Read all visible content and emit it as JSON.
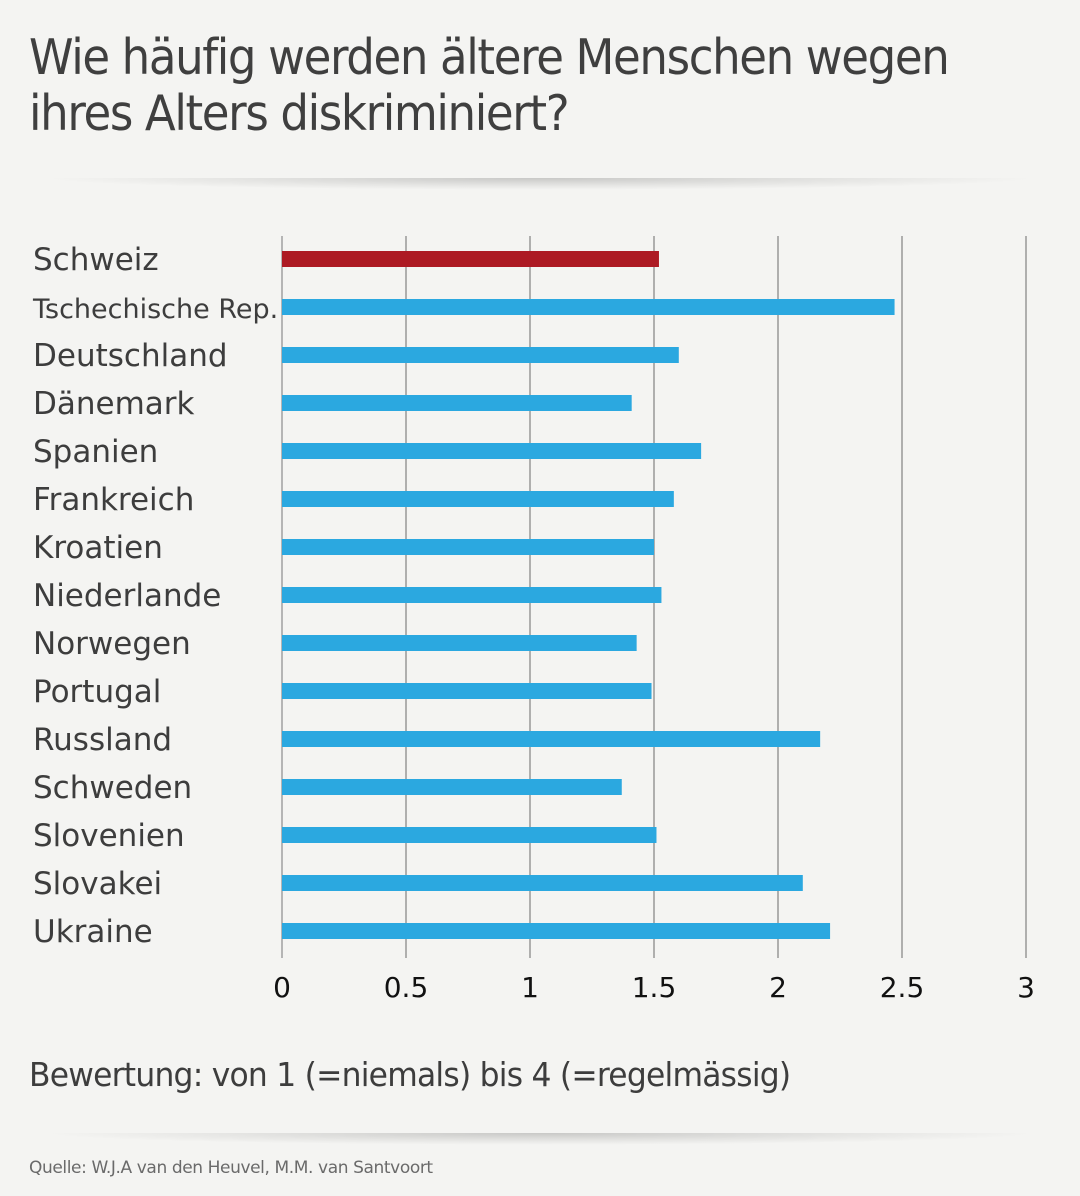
{
  "title": "Wie häufig werden ältere Menschen wegen ihres Alters diskriminiert?",
  "note": "Bewertung: von 1 (=niemals) bis 4 (=regelmässig)",
  "source": "Quelle: W.J.A van den Heuvel, M.M. van Santvoort",
  "colors": {
    "highlight": "#ad1a23",
    "bar": "#2ba8e0",
    "grid": "#8a8a8a",
    "background": "#f4f4f2"
  },
  "chart_data": {
    "type": "bar",
    "orientation": "horizontal",
    "title": "Wie häufig werden ältere Menschen wegen ihres Alters diskriminiert?",
    "xlabel": "",
    "ylabel": "",
    "xlim": [
      0,
      3
    ],
    "xticks": [
      "0",
      "0.5",
      "1",
      "1.5",
      "2",
      "2.5",
      "3"
    ],
    "grid": true,
    "highlight": "Schweiz",
    "categories": [
      "Schweiz",
      "Tschechische Rep.",
      "Deutschland",
      "Dänemark",
      "Spanien",
      "Frankreich",
      "Kroatien",
      "Niederlande",
      "Norwegen",
      "Portugal",
      "Russland",
      "Schweden",
      "Slovenien",
      "Slovakei",
      "Ukraine"
    ],
    "values": [
      1.52,
      2.47,
      1.6,
      1.41,
      1.69,
      1.58,
      1.5,
      1.53,
      1.43,
      1.49,
      2.17,
      1.37,
      1.51,
      2.1,
      2.21
    ],
    "annotation": "Bewertung: von 1 (=niemals) bis 4 (=regelmässig)"
  }
}
